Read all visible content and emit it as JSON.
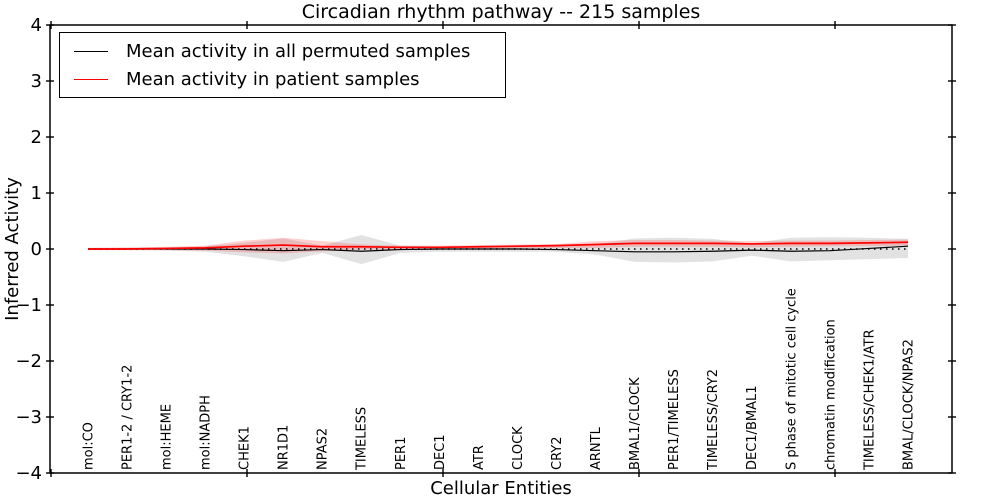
{
  "chart_data": {
    "type": "line",
    "title": "Circadian rhythm pathway -- 215 samples",
    "xlabel": "Cellular Entities",
    "ylabel": "Inferred Activity",
    "ylim": [
      -4,
      4
    ],
    "yticks": [
      -4,
      -3,
      -2,
      -1,
      0,
      1,
      2,
      3,
      4
    ],
    "grid": false,
    "legend_position": "upper left",
    "zero_reference_line": "dotted black at y=0",
    "categories": [
      "mol:CO",
      "PER1-2 / CRY1-2",
      "mol:HEME",
      "mol:NADPH",
      "CHEK1",
      "NR1D1",
      "NPAS2",
      "TIMELESS",
      "PER1",
      "DEC1",
      "ATR",
      "CLOCK",
      "CRY2",
      "ARNTL",
      "BMAL1/CLOCK",
      "PER1/TIMELESS",
      "TIMELESS/CRY2",
      "DEC1/BMAL1",
      "S phase of mitotic cell cycle",
      "chromatin modification",
      "TIMELESS/CHEK1/ATR",
      "BMAL/CLOCK/NPAS2"
    ],
    "series": [
      {
        "name": "Mean activity in all permuted samples",
        "color": "#000000",
        "band_color": "rgba(125,125,125,0.22)",
        "values": [
          0,
          0,
          0,
          0,
          -0.01,
          -0.03,
          -0.01,
          -0.04,
          -0.01,
          0,
          0,
          0,
          -0.01,
          -0.03,
          -0.05,
          -0.05,
          -0.04,
          -0.02,
          -0.04,
          -0.03,
          0.01,
          0.05
        ],
        "band_upper": [
          0.02,
          0.02,
          0.03,
          0.05,
          0.11,
          0.19,
          0.06,
          0.25,
          0.06,
          0.04,
          0.04,
          0.04,
          0.05,
          0.08,
          0.19,
          0.2,
          0.18,
          0.1,
          0.2,
          0.21,
          0.2,
          0.18
        ],
        "band_lower": [
          -0.02,
          -0.02,
          -0.03,
          -0.05,
          -0.13,
          -0.23,
          -0.07,
          -0.27,
          -0.07,
          -0.05,
          -0.05,
          -0.05,
          -0.05,
          -0.1,
          -0.23,
          -0.24,
          -0.22,
          -0.12,
          -0.22,
          -0.2,
          -0.18,
          -0.16
        ]
      },
      {
        "name": "Mean activity in patient samples",
        "color": "#ff0000",
        "band_color": "rgba(255,45,45,0.22)",
        "values": [
          0,
          0,
          0.01,
          0.02,
          0.05,
          0.07,
          0.04,
          0.04,
          0.03,
          0.03,
          0.04,
          0.05,
          0.06,
          0.08,
          0.1,
          0.1,
          0.1,
          0.09,
          0.1,
          0.1,
          0.11,
          0.12
        ],
        "band_upper": [
          0.02,
          0.03,
          0.04,
          0.06,
          0.15,
          0.2,
          0.14,
          0.08,
          0.06,
          0.06,
          0.07,
          0.08,
          0.09,
          0.14,
          0.16,
          0.16,
          0.15,
          0.14,
          0.15,
          0.15,
          0.16,
          0.17
        ],
        "band_lower": [
          -0.02,
          -0.02,
          -0.02,
          -0.03,
          -0.06,
          -0.08,
          -0.04,
          -0.01,
          -0.01,
          0,
          0.01,
          0.01,
          0.02,
          0.02,
          0.04,
          0.04,
          0.04,
          0.03,
          0.04,
          0.05,
          0.05,
          0.06
        ]
      }
    ],
    "legend": [
      {
        "label": "Mean activity in all permuted samples",
        "color": "#000000"
      },
      {
        "label": "Mean activity in patient samples",
        "color": "#ff0000"
      }
    ]
  },
  "colors": {
    "frame": "#000000",
    "background": "#ffffff",
    "permuted_line": "#000000",
    "patient_line": "#ff0000"
  }
}
